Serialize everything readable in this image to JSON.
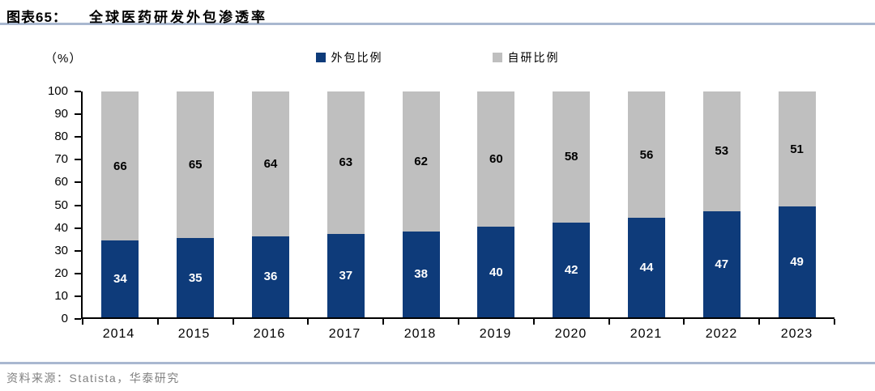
{
  "header": {
    "label": "图表65：",
    "title": "全球医药研发外包渗透率"
  },
  "chart_data": {
    "type": "bar",
    "stacked": true,
    "title": "全球医药研发外包渗透率",
    "categories": [
      "2014",
      "2015",
      "2016",
      "2017",
      "2018",
      "2019",
      "2020",
      "2021",
      "2022",
      "2023"
    ],
    "series": [
      {
        "name": "外包比例",
        "color": "#0e3b7a",
        "label_color": "#ffffff",
        "values": [
          34,
          35,
          36,
          37,
          38,
          40,
          42,
          44,
          47,
          49
        ]
      },
      {
        "name": "自研比例",
        "color": "#bfbfbf",
        "label_color": "#000000",
        "values": [
          66,
          65,
          64,
          63,
          62,
          60,
          58,
          56,
          53,
          51
        ]
      }
    ],
    "ylabel": "（%）",
    "ylim": [
      0,
      100
    ],
    "yticks": [
      0,
      10,
      20,
      30,
      40,
      50,
      60,
      70,
      80,
      90,
      100
    ],
    "grid": false,
    "legend_position": "top"
  },
  "footer": {
    "source": "资料来源：Statista，华泰研究"
  }
}
